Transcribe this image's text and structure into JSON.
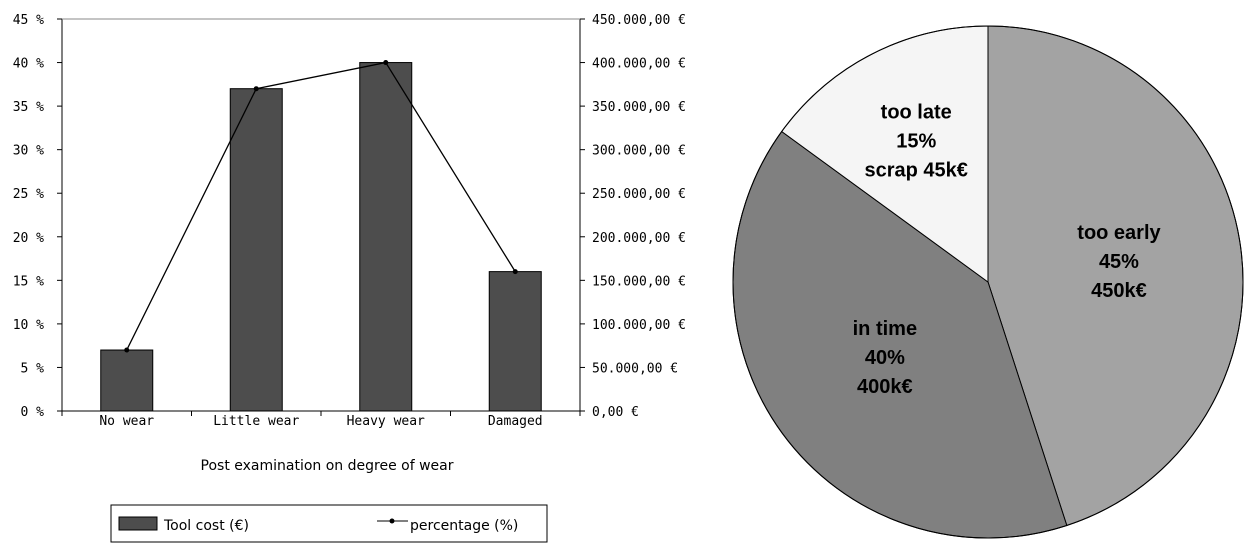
{
  "chart_data": [
    {
      "type": "bar",
      "categories": [
        "No wear",
        "Little wear",
        "Heavy wear",
        "Damaged"
      ],
      "series": [
        {
          "name": "Tool cost (€)",
          "type": "bar",
          "axis": "right",
          "values": [
            70000,
            370000,
            400000,
            160000
          ]
        },
        {
          "name": "percentage (%)",
          "type": "line",
          "axis": "left",
          "values": [
            7,
            37,
            40,
            16
          ]
        }
      ],
      "xlabel": "Post examination on degree of wear",
      "ylim_left": [
        0,
        45
      ],
      "ylim_right": [
        0,
        450000
      ],
      "left_ticks": [
        "0 %",
        "5 %",
        "10 %",
        "15 %",
        "20 %",
        "25 %",
        "30 %",
        "35 %",
        "40 %",
        "45 %"
      ],
      "right_ticks": [
        "0,00 €",
        "50.000,00 €",
        "100.000,00 €",
        "150.000,00 €",
        "200.000,00 €",
        "250.000,00 €",
        "300.000,00 €",
        "350.000,00 €",
        "400.000,00 €",
        "450.000,00 €"
      ],
      "legend": [
        {
          "label": "Tool cost (€)",
          "kind": "bar"
        },
        {
          "label": "percentage (%)",
          "kind": "line"
        }
      ],
      "legend_position": "bottom",
      "grid": false,
      "colors": {
        "bar": "#4d4d4d",
        "line": "#000000"
      }
    },
    {
      "type": "pie",
      "slices": [
        {
          "label_lines": [
            "too early",
            "45%",
            "450k€"
          ],
          "value": 45,
          "color": "#a3a3a3"
        },
        {
          "label_lines": [
            "in time",
            "40%",
            "400k€"
          ],
          "value": 40,
          "color": "#808080"
        },
        {
          "label_lines": [
            "too late",
            "15%",
            "scrap 45k€"
          ],
          "value": 15,
          "color": "#f5f5f5"
        }
      ]
    }
  ]
}
